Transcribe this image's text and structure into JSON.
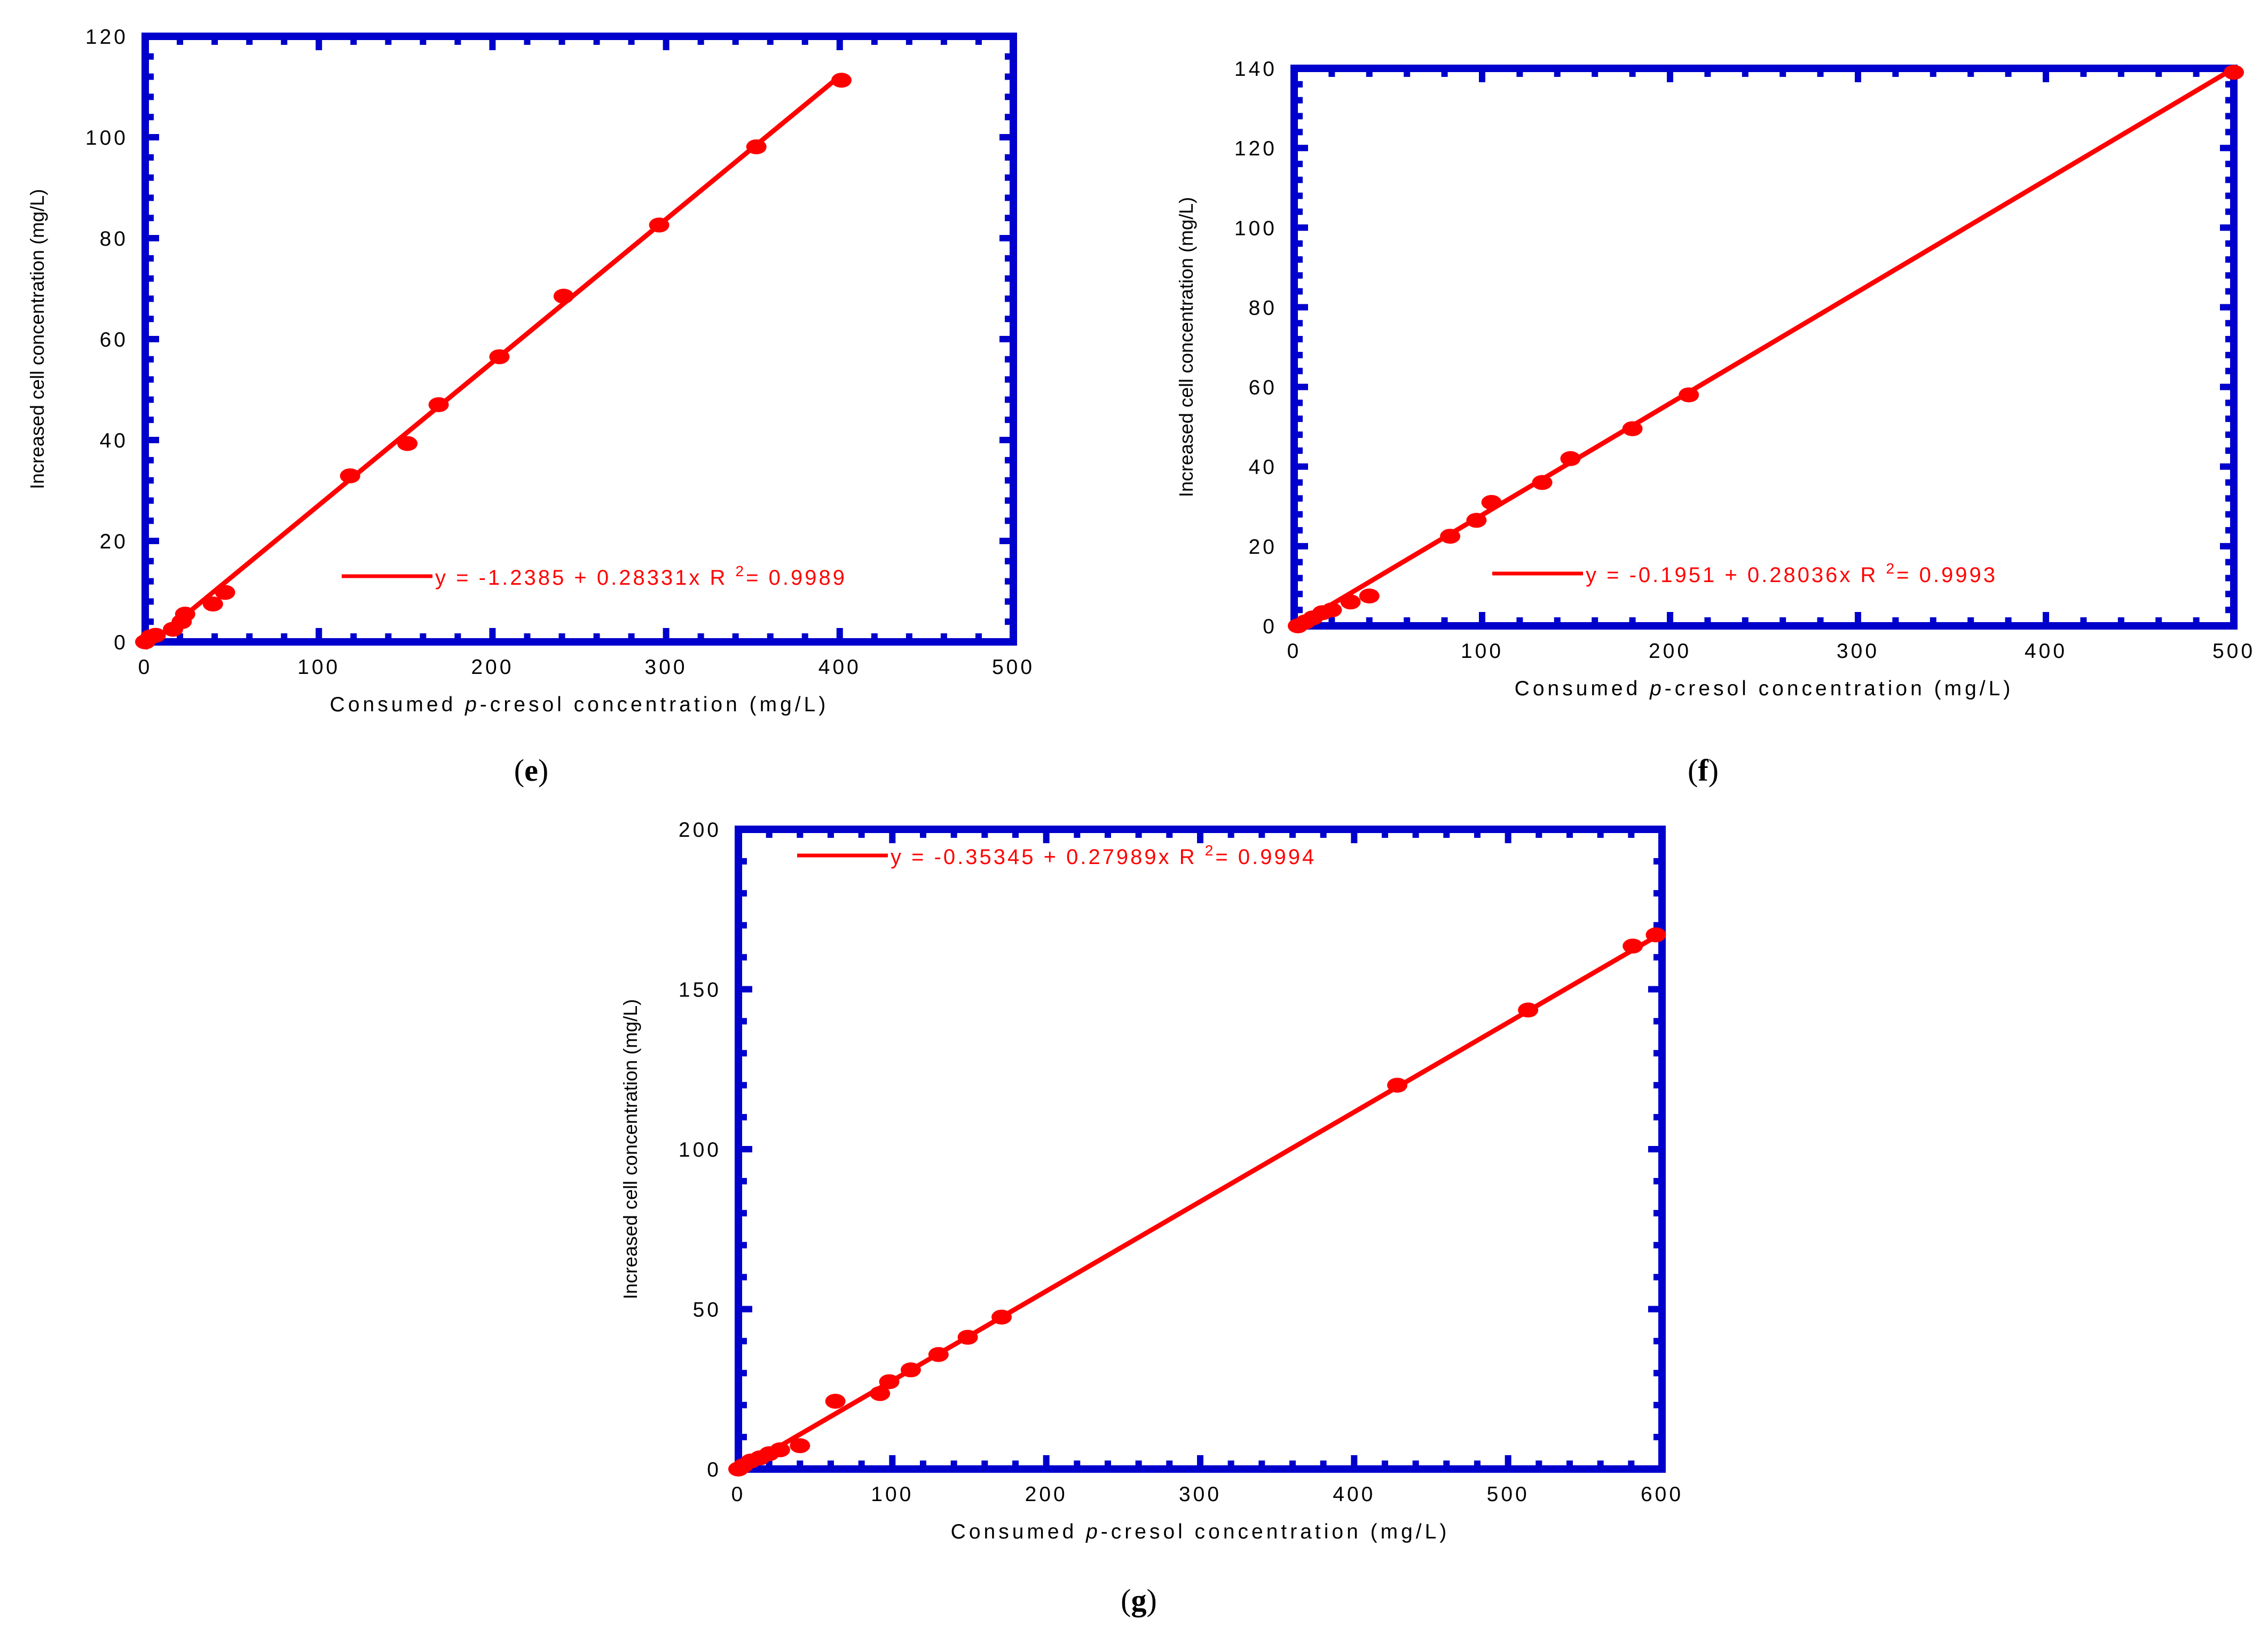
{
  "colors": {
    "frame": "#0000cc",
    "series": "#ff0000",
    "text": "#000000"
  },
  "chart_data": [
    {
      "id": "e",
      "type": "scatter",
      "panel_label": "(e)",
      "panel_letter": "e",
      "xlabel_prefix": "Consumed ",
      "xlabel_italic": "p",
      "xlabel_suffix": "-cresol concentration (mg/L)",
      "ylabel": "Increased cell concentration (mg/L)",
      "xlim": [
        0,
        500
      ],
      "ylim": [
        0,
        120
      ],
      "xticks": [
        "0",
        "100",
        "200",
        "300",
        "400",
        "500"
      ],
      "yticks": [
        "0",
        "20",
        "40",
        "60",
        "80",
        "100",
        "120"
      ],
      "fit": {
        "intercept": -1.2385,
        "slope": 0.28331,
        "r2": 0.9989,
        "x_range": [
          0,
          400
        ],
        "equation_text": "y = -1.2385 + 0.28331x",
        "r2_label": "R",
        "r2_sup": "2",
        "r2_text": "= 0.9989"
      },
      "legend_position": "bottom-right",
      "grid": false,
      "x": [
        0,
        3,
        6,
        16,
        21,
        23,
        39,
        46,
        118,
        151,
        169,
        204,
        241,
        296,
        352,
        401
      ],
      "y": [
        0,
        1,
        1.3,
        2.5,
        4,
        5.5,
        7.5,
        9.8,
        32.9,
        39.3,
        47,
        56.5,
        68.5,
        82.6,
        98.1,
        111.3
      ]
    },
    {
      "id": "f",
      "type": "scatter",
      "panel_label": "(f)",
      "panel_letter": "f",
      "xlabel_prefix": "Consumed ",
      "xlabel_italic": "p",
      "xlabel_suffix": "-cresol concentration (mg/L)",
      "ylabel": "Increased cell concentration (mg/L)",
      "xlim": [
        0,
        500
      ],
      "ylim": [
        0,
        140
      ],
      "xticks": [
        "0",
        "100",
        "200",
        "300",
        "400",
        "500"
      ],
      "yticks": [
        "0",
        "20",
        "40",
        "60",
        "80",
        "100",
        "120",
        "140"
      ],
      "fit": {
        "intercept": -0.1951,
        "slope": 0.28036,
        "r2": 0.9993,
        "x_range": [
          0,
          500
        ],
        "equation_text": "y = -0.1951 + 0.28036x",
        "r2_label": "R",
        "r2_sup": "2",
        "r2_text": "= 0.9993"
      },
      "legend_position": "bottom-right",
      "grid": false,
      "x": [
        2,
        6,
        10,
        15,
        20,
        30,
        40,
        83,
        97,
        105,
        132,
        147,
        180,
        210,
        500
      ],
      "y": [
        0,
        1,
        2,
        3.3,
        4,
        6,
        7.5,
        22.5,
        26.5,
        31,
        36,
        42,
        49.5,
        58,
        139
      ]
    },
    {
      "id": "g",
      "type": "scatter",
      "panel_label": "(g)",
      "panel_letter": "g",
      "xlabel_prefix": "Consumed ",
      "xlabel_italic": "p",
      "xlabel_suffix": "-cresol concentration (mg/L)",
      "ylabel": "Increased cell concentration (mg/L)",
      "xlim": [
        0,
        600
      ],
      "ylim": [
        0,
        200
      ],
      "xticks": [
        "0",
        "100",
        "200",
        "300",
        "400",
        "500",
        "600"
      ],
      "yticks": [
        "0",
        "50",
        "100",
        "150",
        "200"
      ],
      "fit": {
        "intercept": -0.35345,
        "slope": 0.27989,
        "r2": 0.9994,
        "x_range": [
          0,
          600
        ],
        "equation_text": "y = -0.35345 + 0.27989x",
        "r2_label": "R",
        "r2_sup": "2",
        "r2_text": "= 0.9994"
      },
      "legend_position": "top-left",
      "grid": false,
      "x": [
        0,
        3,
        8,
        14,
        20,
        27,
        40,
        63,
        92,
        98,
        112,
        130,
        149,
        171,
        428,
        513,
        581,
        596
      ],
      "y": [
        0,
        1,
        2.5,
        3.5,
        4.8,
        6,
        7.3,
        21.2,
        23.6,
        27.3,
        31,
        35.8,
        41.2,
        47.5,
        120,
        143.5,
        163.5,
        167
      ]
    }
  ]
}
